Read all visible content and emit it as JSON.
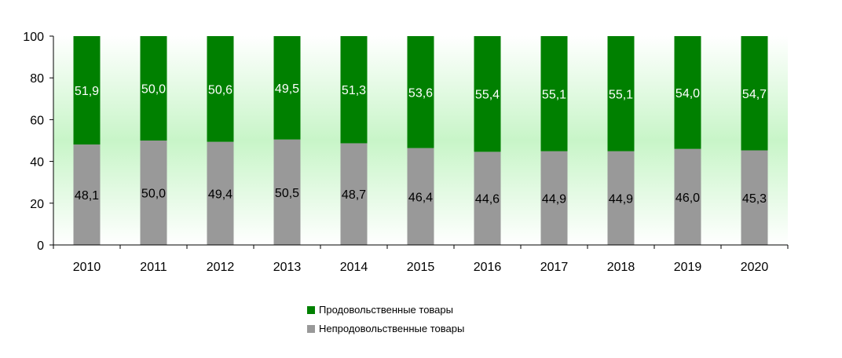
{
  "chart_data": {
    "type": "bar",
    "stacked": true,
    "categories": [
      "2010",
      "2011",
      "2012",
      "2013",
      "2014",
      "2015",
      "2016",
      "2017",
      "2018",
      "2019",
      "2020"
    ],
    "series": [
      {
        "name": "Непродовольственные товары",
        "color": "#999999",
        "label_color": "#000000",
        "values": [
          48.1,
          50.0,
          49.4,
          50.5,
          48.7,
          46.4,
          44.6,
          44.9,
          44.9,
          46.0,
          45.3
        ],
        "labels": [
          "48,1",
          "50,0",
          "49,4",
          "50,5",
          "48,7",
          "46,4",
          "44,6",
          "44,9",
          "44,9",
          "46,0",
          "45,3"
        ]
      },
      {
        "name": "Продовольственные товары",
        "color": "#008000",
        "label_color": "#ffffff",
        "values": [
          51.9,
          50.0,
          50.6,
          49.5,
          51.3,
          53.6,
          55.4,
          55.1,
          55.1,
          54.0,
          54.7
        ],
        "labels": [
          "51,9",
          "50,0",
          "50,6",
          "49,5",
          "51,3",
          "53,6",
          "55,4",
          "55,1",
          "55,1",
          "54,0",
          "54,7"
        ]
      }
    ],
    "y_ticks": [
      "0",
      "20",
      "40",
      "60",
      "80",
      "100"
    ],
    "ylim": [
      0,
      100
    ],
    "grid": false,
    "legend_position": "bottom-center",
    "title": "",
    "xlabel": "",
    "ylabel": ""
  }
}
